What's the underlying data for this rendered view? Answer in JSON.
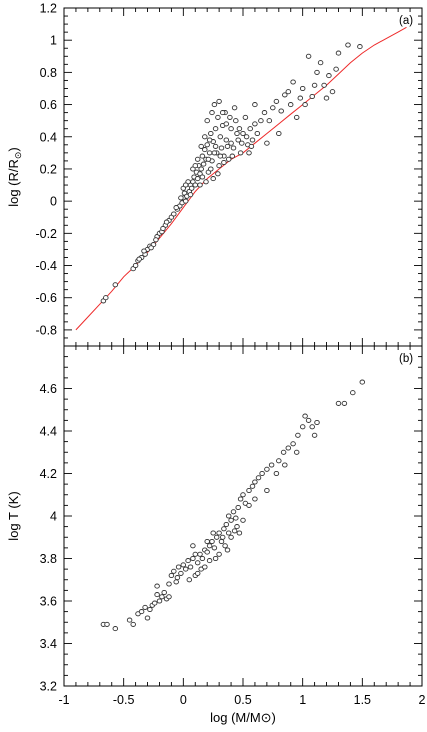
{
  "chart_data": [
    {
      "type": "scatter",
      "panel_label": "(a)",
      "xlabel": "log (M/M⊙)",
      "ylabel_main": "log (R/R",
      "ylabel_sub": "⊙",
      "ylabel_end": ")",
      "xlim": [
        -1,
        2
      ],
      "ylim": [
        -0.9,
        1.2
      ],
      "x_ticks": [
        -1,
        -0.5,
        0,
        0.5,
        1,
        1.5,
        2
      ],
      "y_ticks": [
        1.2,
        1,
        0.8,
        0.6,
        0.4,
        0.2,
        0,
        -0.2,
        -0.4,
        -0.6,
        -0.8
      ],
      "y_tick_labels": [
        "1.2",
        "1",
        "0.8",
        "0.6",
        "0.4",
        "0.2",
        "0",
        "-0.2",
        "-0.4",
        "-0.6",
        "-0.8"
      ],
      "points": [
        [
          -0.67,
          -0.62
        ],
        [
          -0.65,
          -0.6
        ],
        [
          -0.57,
          -0.52
        ],
        [
          -0.42,
          -0.42
        ],
        [
          -0.4,
          -0.4
        ],
        [
          -0.38,
          -0.37
        ],
        [
          -0.35,
          -0.35
        ],
        [
          -0.32,
          -0.33
        ],
        [
          -0.3,
          -0.3
        ],
        [
          -0.28,
          -0.28
        ],
        [
          -0.25,
          -0.27
        ],
        [
          -0.22,
          -0.22
        ],
        [
          -0.2,
          -0.2
        ],
        [
          -0.18,
          -0.19
        ],
        [
          -0.15,
          -0.15
        ],
        [
          -0.12,
          -0.12
        ],
        [
          -0.1,
          -0.1
        ],
        [
          -0.08,
          -0.08
        ],
        [
          -0.05,
          -0.05
        ],
        [
          -0.03,
          -0.03
        ],
        [
          -0.01,
          -0.01
        ],
        [
          0.0,
          0.02
        ],
        [
          0.01,
          0.05
        ],
        [
          0.02,
          0.0
        ],
        [
          0.03,
          0.03
        ],
        [
          0.05,
          0.06
        ],
        [
          0.06,
          0.1
        ],
        [
          0.07,
          0.08
        ],
        [
          0.08,
          0.12
        ],
        [
          0.09,
          0.15
        ],
        [
          0.1,
          0.1
        ],
        [
          0.11,
          0.18
        ],
        [
          0.12,
          0.14
        ],
        [
          0.13,
          0.22
        ],
        [
          0.14,
          0.17
        ],
        [
          0.15,
          0.2
        ],
        [
          0.16,
          0.28
        ],
        [
          0.17,
          0.23
        ],
        [
          0.18,
          0.32
        ],
        [
          0.19,
          0.26
        ],
        [
          0.2,
          0.35
        ],
        [
          0.21,
          0.18
        ],
        [
          0.22,
          0.3
        ],
        [
          0.23,
          0.42
        ],
        [
          0.24,
          0.25
        ],
        [
          0.25,
          0.37
        ],
        [
          0.26,
          0.6
        ],
        [
          0.27,
          0.45
        ],
        [
          0.28,
          0.3
        ],
        [
          0.29,
          0.52
        ],
        [
          0.3,
          0.22
        ],
        [
          0.31,
          0.4
        ],
        [
          0.32,
          0.33
        ],
        [
          0.33,
          0.47
        ],
        [
          0.34,
          0.28
        ],
        [
          0.35,
          0.55
        ],
        [
          0.36,
          0.38
        ],
        [
          0.38,
          0.26
        ],
        [
          0.4,
          0.45
        ],
        [
          0.42,
          0.33
        ],
        [
          0.44,
          0.5
        ],
        [
          0.46,
          0.38
        ],
        [
          0.48,
          0.3
        ],
        [
          0.5,
          0.42
        ],
        [
          0.52,
          0.52
        ],
        [
          0.54,
          0.35
        ],
        [
          0.56,
          0.45
        ],
        [
          0.58,
          0.38
        ],
        [
          0.6,
          0.6
        ],
        [
          0.62,
          0.42
        ],
        [
          0.65,
          0.5
        ],
        [
          0.7,
          0.36
        ],
        [
          0.75,
          0.58
        ],
        [
          0.8,
          0.42
        ],
        [
          0.85,
          0.66
        ],
        [
          0.9,
          0.6
        ],
        [
          0.95,
          0.52
        ],
        [
          1.0,
          0.7
        ],
        [
          1.05,
          0.9
        ],
        [
          1.08,
          0.65
        ],
        [
          1.12,
          0.8
        ],
        [
          1.18,
          0.72
        ],
        [
          1.2,
          0.64
        ],
        [
          1.3,
          0.92
        ],
        [
          1.38,
          0.97
        ],
        [
          1.48,
          0.96
        ],
        [
          0.08,
          0.2
        ],
        [
          0.12,
          0.26
        ],
        [
          0.15,
          0.34
        ],
        [
          0.18,
          0.4
        ],
        [
          0.2,
          0.5
        ],
        [
          0.22,
          0.38
        ],
        [
          0.24,
          0.55
        ],
        [
          0.26,
          0.3
        ],
        [
          0.3,
          0.62
        ],
        [
          0.33,
          0.55
        ],
        [
          0.36,
          0.48
        ],
        [
          0.4,
          0.36
        ],
        [
          0.43,
          0.58
        ],
        [
          0.47,
          0.45
        ],
        [
          0.55,
          0.3
        ],
        [
          0.6,
          0.48
        ],
        [
          0.68,
          0.55
        ],
        [
          0.72,
          0.5
        ],
        [
          0.78,
          0.62
        ],
        [
          0.82,
          0.56
        ],
        [
          0.88,
          0.68
        ],
        [
          0.92,
          0.74
        ],
        [
          0.98,
          0.64
        ],
        [
          1.02,
          0.6
        ],
        [
          1.1,
          0.72
        ],
        [
          1.15,
          0.86
        ],
        [
          1.22,
          0.78
        ],
        [
          1.25,
          0.68
        ],
        [
          1.28,
          0.82
        ],
        [
          0.04,
          0.12
        ],
        [
          0.06,
          0.04
        ],
        [
          0.1,
          0.22
        ],
        [
          0.14,
          0.1
        ],
        [
          0.16,
          0.15
        ],
        [
          0.19,
          0.12
        ],
        [
          0.21,
          0.26
        ],
        [
          0.23,
          0.2
        ],
        [
          0.25,
          0.14
        ],
        [
          0.27,
          0.34
        ],
        [
          0.29,
          0.17
        ],
        [
          0.31,
          0.28
        ],
        [
          0.34,
          0.24
        ],
        [
          0.37,
          0.34
        ],
        [
          0.39,
          0.52
        ],
        [
          0.41,
          0.28
        ],
        [
          0.45,
          0.42
        ],
        [
          0.49,
          0.36
        ],
        [
          0.53,
          0.4
        ],
        [
          0.57,
          0.34
        ],
        [
          -0.02,
          0.02
        ],
        [
          -0.06,
          -0.04
        ],
        [
          -0.14,
          -0.13
        ],
        [
          -0.17,
          -0.17
        ],
        [
          -0.23,
          -0.24
        ],
        [
          -0.27,
          -0.29
        ],
        [
          -0.33,
          -0.31
        ],
        [
          -0.37,
          -0.36
        ],
        [
          0.0,
          0.08
        ],
        [
          0.02,
          0.1
        ]
      ],
      "fit_curve": [
        [
          -0.9,
          -0.8
        ],
        [
          -0.8,
          -0.72
        ],
        [
          -0.7,
          -0.64
        ],
        [
          -0.6,
          -0.56
        ],
        [
          -0.5,
          -0.47
        ],
        [
          -0.4,
          -0.4
        ],
        [
          -0.3,
          -0.32
        ],
        [
          -0.2,
          -0.23
        ],
        [
          -0.1,
          -0.14
        ],
        [
          0.0,
          -0.04
        ],
        [
          0.1,
          0.06
        ],
        [
          0.2,
          0.14
        ],
        [
          0.3,
          0.2
        ],
        [
          0.4,
          0.26
        ],
        [
          0.5,
          0.3
        ],
        [
          0.6,
          0.36
        ],
        [
          0.7,
          0.42
        ],
        [
          0.8,
          0.48
        ],
        [
          0.9,
          0.54
        ],
        [
          1.0,
          0.6
        ],
        [
          1.1,
          0.66
        ],
        [
          1.2,
          0.72
        ],
        [
          1.3,
          0.79
        ],
        [
          1.4,
          0.86
        ],
        [
          1.5,
          0.92
        ],
        [
          1.6,
          0.97
        ],
        [
          1.7,
          1.01
        ],
        [
          1.8,
          1.05
        ],
        [
          1.87,
          1.08
        ]
      ]
    },
    {
      "type": "scatter",
      "panel_label": "(b)",
      "xlabel": "log (M/M⊙)",
      "ylabel": "log T (K)",
      "xlim": [
        -1,
        2
      ],
      "ylim": [
        3.2,
        4.8
      ],
      "x_ticks": [
        -1,
        -0.5,
        0,
        0.5,
        1,
        1.5,
        2
      ],
      "x_tick_labels": [
        "-1",
        "-0.5",
        "0",
        "0.5",
        "1",
        "1.5",
        "2"
      ],
      "y_ticks": [
        4.6,
        4.4,
        4.2,
        4,
        3.8,
        3.6,
        3.4,
        3.2
      ],
      "y_tick_labels": [
        "4.6",
        "4.4",
        "4.2",
        "4",
        "3.8",
        "3.6",
        "3.4",
        "3.2"
      ],
      "points": [
        [
          -0.67,
          3.49
        ],
        [
          -0.64,
          3.49
        ],
        [
          -0.57,
          3.47
        ],
        [
          -0.45,
          3.51
        ],
        [
          -0.42,
          3.49
        ],
        [
          -0.38,
          3.54
        ],
        [
          -0.35,
          3.55
        ],
        [
          -0.32,
          3.57
        ],
        [
          -0.3,
          3.52
        ],
        [
          -0.28,
          3.56
        ],
        [
          -0.26,
          3.58
        ],
        [
          -0.24,
          3.59
        ],
        [
          -0.22,
          3.63
        ],
        [
          -0.2,
          3.6
        ],
        [
          -0.18,
          3.62
        ],
        [
          -0.16,
          3.64
        ],
        [
          -0.14,
          3.61
        ],
        [
          -0.12,
          3.68
        ],
        [
          -0.1,
          3.72
        ],
        [
          -0.08,
          3.74
        ],
        [
          -0.06,
          3.69
        ],
        [
          -0.04,
          3.76
        ],
        [
          -0.02,
          3.73
        ],
        [
          0.0,
          3.77
        ],
        [
          0.02,
          3.75
        ],
        [
          0.04,
          3.79
        ],
        [
          0.06,
          3.76
        ],
        [
          0.08,
          3.8
        ],
        [
          0.1,
          3.72
        ],
        [
          0.12,
          3.78
        ],
        [
          0.14,
          3.82
        ],
        [
          0.16,
          3.8
        ],
        [
          0.18,
          3.84
        ],
        [
          0.2,
          3.83
        ],
        [
          0.22,
          3.79
        ],
        [
          0.24,
          3.88
        ],
        [
          0.26,
          3.85
        ],
        [
          0.28,
          3.9
        ],
        [
          0.3,
          3.92
        ],
        [
          0.32,
          3.88
        ],
        [
          0.34,
          3.94
        ],
        [
          0.36,
          3.96
        ],
        [
          0.38,
          3.92
        ],
        [
          0.4,
          3.98
        ],
        [
          0.42,
          4.02
        ],
        [
          0.44,
          3.99
        ],
        [
          0.46,
          4.04
        ],
        [
          0.48,
          4.08
        ],
        [
          0.5,
          4.1
        ],
        [
          0.52,
          4.06
        ],
        [
          0.55,
          4.12
        ],
        [
          0.58,
          4.14
        ],
        [
          0.6,
          4.16
        ],
        [
          0.63,
          4.18
        ],
        [
          0.66,
          4.2
        ],
        [
          0.7,
          4.22
        ],
        [
          0.74,
          4.24
        ],
        [
          0.8,
          4.26
        ],
        [
          0.84,
          4.3
        ],
        [
          0.88,
          4.32
        ],
        [
          0.92,
          4.34
        ],
        [
          0.96,
          4.38
        ],
        [
          1.0,
          4.42
        ],
        [
          1.02,
          4.47
        ],
        [
          1.05,
          4.45
        ],
        [
          1.08,
          4.42
        ],
        [
          1.12,
          4.44
        ],
        [
          1.3,
          4.53
        ],
        [
          1.35,
          4.53
        ],
        [
          1.42,
          4.58
        ],
        [
          1.5,
          4.63
        ],
        [
          -0.22,
          3.67
        ],
        [
          -0.12,
          3.62
        ],
        [
          -0.05,
          3.71
        ],
        [
          0.05,
          3.7
        ],
        [
          0.1,
          3.82
        ],
        [
          0.15,
          3.75
        ],
        [
          0.2,
          3.88
        ],
        [
          0.25,
          3.92
        ],
        [
          0.3,
          3.82
        ],
        [
          0.35,
          3.86
        ],
        [
          0.4,
          3.9
        ],
        [
          0.45,
          3.95
        ],
        [
          0.5,
          3.98
        ],
        [
          0.55,
          4.05
        ],
        [
          0.6,
          4.08
        ],
        [
          0.7,
          4.12
        ],
        [
          0.78,
          4.2
        ],
        [
          0.85,
          4.24
        ],
        [
          0.95,
          4.3
        ],
        [
          1.1,
          4.38
        ],
        [
          0.08,
          3.86
        ],
        [
          0.12,
          3.73
        ],
        [
          0.18,
          3.76
        ],
        [
          0.22,
          3.86
        ],
        [
          0.27,
          3.8
        ],
        [
          0.33,
          3.9
        ],
        [
          0.37,
          3.84
        ],
        [
          0.43,
          3.93
        ],
        [
          0.47,
          3.92
        ],
        [
          0.38,
          4.0
        ]
      ]
    }
  ]
}
